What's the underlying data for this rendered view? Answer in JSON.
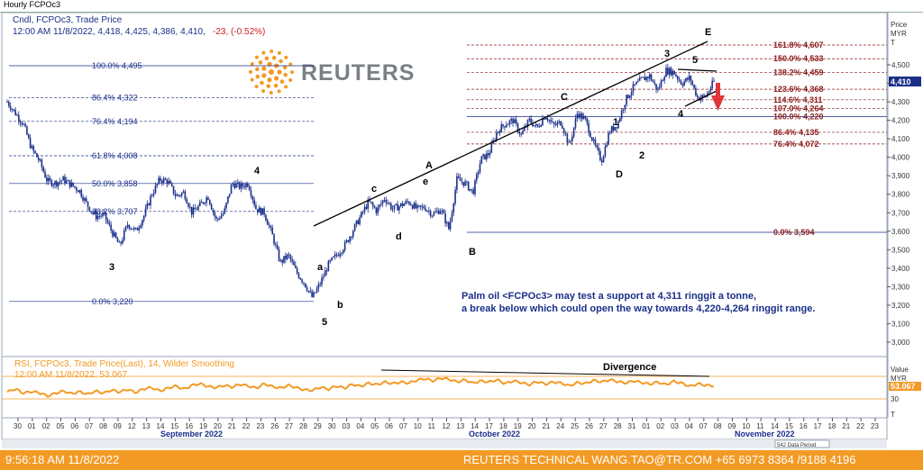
{
  "window_title": "Hourly FCPOc3",
  "header": {
    "line1": "Cndl, FCPOc3, Trade Price",
    "line2_prefix": "12:00 AM 11/8/2022, 4,418, 4,425, 4,386, 4,410,",
    "line2_change": "-23, (-0.52%)"
  },
  "logo_text": "REUTERS",
  "price_axis": {
    "title1": "Price",
    "title2": "MYR",
    "title3": "T",
    "current_value": "4,410"
  },
  "rsi": {
    "header1": "RSI, FCPOc3, Trade Price(Last),  14, Wilder Smoothing",
    "header2": "12:00 AM 11/8/2022, 53.067",
    "axis_title1": "Value",
    "axis_title2": "MYR",
    "axis_unit": "T",
    "current_value": "53.067",
    "divergence_label": "Divergence"
  },
  "annotation": {
    "line1": "Palm oil <FCPOc3> may test a support at 4,311 ringgit a tonne,",
    "line2": "a break below which could open the way towards 4,220-4,264 ringgit range."
  },
  "x_axis": {
    "day_ticks": [
      "30",
      "01",
      "02",
      "05",
      "06",
      "07",
      "08",
      "09",
      "12",
      "13",
      "14",
      "15",
      "16",
      "19",
      "20",
      "21",
      "22",
      "23",
      "26",
      "27",
      "28",
      "29",
      "30",
      "03",
      "04",
      "05",
      "06",
      "07",
      "10",
      "11",
      "12",
      "13",
      "14",
      "17",
      "18",
      "19",
      "20",
      "21",
      "24",
      "25",
      "26",
      "27",
      "28",
      "31",
      "01",
      "02",
      "03",
      "04",
      "07",
      "08",
      "09",
      "10",
      "11",
      "14",
      "15",
      "16",
      "17",
      "18",
      "21",
      "22",
      "23"
    ],
    "months": [
      "September 2022",
      "October 2022",
      "November 2022"
    ],
    "data_period": "542 Data Period"
  },
  "footer": {
    "timestamp": "9:56:18 AM 11/8/2022",
    "contact": "REUTERS TECHNICAL  WANG.TAO@TR.COM  +65 6973 8364 /9188 4196"
  },
  "colors": {
    "candle": "#1a2f8a",
    "fib_left": "#1a2f8a",
    "fib_right": "#8b1a1a",
    "rsi_line": "#f39a25",
    "arrow": "#e0353b",
    "footer": "#f39a25",
    "change": "#d01c1c"
  },
  "chart_data": [
    {
      "type": "candlestick",
      "title": "Hourly FCPOc3",
      "ylabel": "Price MYR",
      "ylim": [
        2900,
        5000
      ],
      "y_ticks": [
        3000,
        3100,
        3200,
        3300,
        3400,
        3500,
        3600,
        3700,
        3800,
        3900,
        4000,
        4100,
        4200,
        4300,
        4400,
        4500
      ],
      "close_path": [
        4300,
        4240,
        4180,
        4050,
        3980,
        3870,
        3860,
        3880,
        3850,
        3820,
        3740,
        3680,
        3690,
        3600,
        3520,
        3640,
        3600,
        3680,
        3800,
        3880,
        3870,
        3790,
        3810,
        3700,
        3740,
        3790,
        3660,
        3700,
        3860,
        3840,
        3860,
        3720,
        3700,
        3580,
        3430,
        3470,
        3380,
        3320,
        3240,
        3320,
        3420,
        3470,
        3520,
        3600,
        3680,
        3760,
        3710,
        3780,
        3720,
        3740,
        3760,
        3720,
        3730,
        3690,
        3720,
        3610,
        3880,
        3860,
        3810,
        3990,
        4020,
        4140,
        4180,
        4200,
        4120,
        4200,
        4160,
        4230,
        4170,
        4190,
        4060,
        4240,
        4200,
        4080,
        3980,
        4140,
        4180,
        4310,
        4380,
        4420,
        4440,
        4360,
        4470,
        4460,
        4400,
        4430,
        4320,
        4330,
        4410
      ],
      "fib_left": [
        {
          "label": "100.0%",
          "value": "4,495"
        },
        {
          "label": "86.4%",
          "value": "4,322"
        },
        {
          "label": "76.4%",
          "value": "4,194"
        },
        {
          "label": "61.8%",
          "value": "4,008"
        },
        {
          "label": "50.0%",
          "value": "3,858"
        },
        {
          "label": "38.2%",
          "value": "3,707"
        },
        {
          "label": "0.0%",
          "value": "3,220"
        }
      ],
      "fib_right": [
        {
          "label": "161.8%",
          "value": "4,607"
        },
        {
          "label": "150.0%",
          "value": "4,533"
        },
        {
          "label": "138.2%",
          "value": "4,459"
        },
        {
          "label": "123.6%",
          "value": "4,368"
        },
        {
          "label": "114.6%",
          "value": "4,311"
        },
        {
          "label": "107.0%",
          "value": "4,264"
        },
        {
          "label": "100.0%",
          "value": "4,220"
        },
        {
          "label": "86.4%",
          "value": "4,135"
        },
        {
          "label": "76.4%",
          "value": "4,072"
        },
        {
          "label": "0.0%",
          "value": "3,594"
        }
      ],
      "wave_labels": [
        "3",
        "4",
        "a",
        "b",
        "5",
        "c",
        "d",
        "A",
        "e",
        "B",
        "C",
        "1",
        "2",
        "D",
        "3",
        "4",
        "5",
        "E"
      ]
    },
    {
      "type": "line",
      "name": "RSI 14",
      "ylim": [
        0,
        100
      ],
      "y_ticks": [
        30
      ],
      "values": [
        42,
        48,
        40,
        43,
        41,
        35,
        40,
        44,
        39,
        43,
        38,
        44,
        40,
        46,
        42,
        47,
        41,
        48,
        50,
        44,
        49,
        53,
        47,
        54,
        57,
        52,
        50,
        54,
        51,
        56,
        53,
        49,
        57,
        52,
        49,
        54,
        50,
        46,
        45,
        51,
        47,
        53,
        49,
        56,
        52,
        58,
        55,
        60,
        57,
        60,
        58,
        63,
        66,
        62,
        67,
        65,
        60,
        64,
        58,
        62,
        60,
        64,
        57,
        62,
        59,
        55,
        61,
        56,
        60,
        58,
        53,
        59,
        57,
        63,
        60,
        64,
        61,
        58,
        62,
        59,
        56,
        60,
        55,
        61,
        58,
        52,
        57,
        54,
        53
      ]
    }
  ]
}
